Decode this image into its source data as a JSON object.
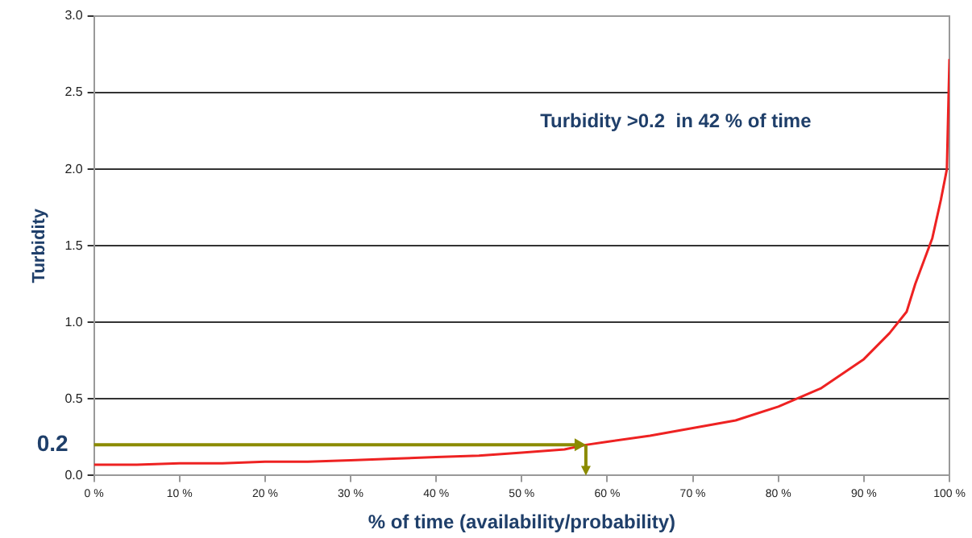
{
  "chart_data": {
    "type": "line",
    "x": [
      0,
      5,
      10,
      15,
      20,
      25,
      30,
      35,
      40,
      45,
      50,
      55,
      57.5,
      60,
      65,
      70,
      75,
      80,
      85,
      90,
      93,
      95,
      96,
      97,
      98,
      99,
      99.7,
      100
    ],
    "series": [
      {
        "color": "#ee2222",
        "values": [
          0.07,
          0.07,
          0.08,
          0.08,
          0.09,
          0.09,
          0.1,
          0.11,
          0.12,
          0.13,
          0.15,
          0.17,
          0.2,
          0.22,
          0.26,
          0.31,
          0.36,
          0.45,
          0.57,
          0.76,
          0.93,
          1.07,
          1.25,
          1.4,
          1.55,
          1.8,
          2.0,
          2.72
        ]
      }
    ],
    "xlabel": "% of time (availability/probability)",
    "ylabel": "Turbidity",
    "xlim": [
      0,
      100
    ],
    "xticks": [
      {
        "value": 0,
        "label": "0 %"
      },
      {
        "value": 10,
        "label": "10 %"
      },
      {
        "value": 20,
        "label": "20 %"
      },
      {
        "value": 30,
        "label": "30 %"
      },
      {
        "value": 40,
        "label": "40 %"
      },
      {
        "value": 50,
        "label": "50 %"
      },
      {
        "value": 60,
        "label": "60 %"
      },
      {
        "value": 70,
        "label": "70 %"
      },
      {
        "value": 80,
        "label": "80 %"
      },
      {
        "value": 90,
        "label": "90 %"
      },
      {
        "value": 100,
        "label": "100 %"
      }
    ],
    "ylim": [
      0,
      3
    ],
    "yticks": [
      {
        "value": 0,
        "label": "0.0"
      },
      {
        "value": 0.5,
        "label": "0.5"
      },
      {
        "value": 1,
        "label": "1.0"
      },
      {
        "value": 1.5,
        "label": "1.5"
      },
      {
        "value": 2,
        "label": "2.0"
      },
      {
        "value": 2.5,
        "label": "2.5"
      },
      {
        "value": 3,
        "label": "3.0"
      }
    ],
    "grid": "y",
    "legend": false,
    "marker": "none",
    "line_style": "solid",
    "ref_lines": [
      {
        "axis": "y",
        "value": 0.2,
        "label": "0.2",
        "color": "#8b8b00"
      }
    ],
    "annotations": [
      "Turbidity >0.2  in 42 % of time"
    ]
  }
}
